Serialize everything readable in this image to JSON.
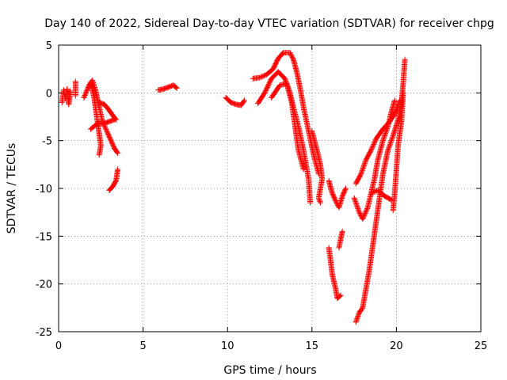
{
  "chart_data": {
    "type": "scatter",
    "title": "Day 140 of 2022, Sidereal Day-to-day VTEC variation (SDTVAR) for receiver chpg",
    "xlabel": "GPS time / hours",
    "ylabel": "SDTVAR / TECUs",
    "xlim": [
      0,
      25
    ],
    "ylim": [
      -25,
      5
    ],
    "xticks": [
      0,
      5,
      10,
      15,
      20,
      25
    ],
    "yticks": [
      -25,
      -20,
      -15,
      -10,
      -5,
      0,
      5
    ],
    "grid": true,
    "marker": "+",
    "color": "#ff0000",
    "segments": [
      {
        "name": "arc-1",
        "points": [
          [
            0.2,
            -1.0
          ],
          [
            0.3,
            0.3
          ],
          [
            0.4,
            -0.6
          ],
          [
            0.5,
            0.4
          ],
          [
            0.6,
            -1.2
          ],
          [
            0.7,
            0.2
          ]
        ]
      },
      {
        "name": "arc-2",
        "points": [
          [
            1.0,
            -0.3
          ],
          [
            1.0,
            1.2
          ]
        ]
      },
      {
        "name": "arc-3",
        "points": [
          [
            1.5,
            -0.5
          ],
          [
            1.8,
            0.8
          ],
          [
            2.0,
            1.3
          ],
          [
            2.2,
            0.2
          ],
          [
            2.4,
            -1.5
          ],
          [
            2.6,
            -3.0
          ],
          [
            2.9,
            -4.2
          ],
          [
            3.1,
            -5.0
          ],
          [
            3.3,
            -5.8
          ],
          [
            3.5,
            -6.3
          ]
        ]
      },
      {
        "name": "arc-4",
        "points": [
          [
            1.9,
            1.1
          ],
          [
            2.1,
            -0.5
          ],
          [
            2.3,
            -3.0
          ],
          [
            2.5,
            -5.5
          ],
          [
            2.4,
            -6.5
          ]
        ]
      },
      {
        "name": "arc-5",
        "points": [
          [
            2.4,
            -1.0
          ],
          [
            2.7,
            -1.2
          ],
          [
            2.9,
            -1.6
          ],
          [
            3.1,
            -2.1
          ],
          [
            3.4,
            -2.8
          ]
        ]
      },
      {
        "name": "arc-6",
        "points": [
          [
            1.9,
            -3.8
          ],
          [
            2.3,
            -3.2
          ],
          [
            2.7,
            -3.2
          ],
          [
            3.0,
            -3.0
          ],
          [
            3.3,
            -2.8
          ]
        ]
      },
      {
        "name": "arc-7",
        "points": [
          [
            3.0,
            -10.2
          ],
          [
            3.2,
            -9.8
          ],
          [
            3.4,
            -9.2
          ],
          [
            3.5,
            -8.0
          ]
        ]
      },
      {
        "name": "arc-8",
        "points": [
          [
            5.9,
            0.3
          ],
          [
            6.2,
            0.4
          ],
          [
            6.5,
            0.6
          ],
          [
            6.8,
            0.8
          ],
          [
            7.0,
            0.5
          ]
        ]
      },
      {
        "name": "arc-9",
        "points": [
          [
            9.9,
            -0.5
          ],
          [
            10.2,
            -1.0
          ],
          [
            10.5,
            -1.2
          ],
          [
            10.8,
            -1.3
          ],
          [
            11.0,
            -0.8
          ]
        ]
      },
      {
        "name": "arc-10",
        "points": [
          [
            11.5,
            1.5
          ],
          [
            11.9,
            1.6
          ],
          [
            12.3,
            1.9
          ],
          [
            12.7,
            2.5
          ],
          [
            13.0,
            3.6
          ],
          [
            13.3,
            4.2
          ],
          [
            13.7,
            4.2
          ],
          [
            13.9,
            3.5
          ],
          [
            14.1,
            2.2
          ],
          [
            14.3,
            0.5
          ],
          [
            14.5,
            -1.5
          ],
          [
            14.8,
            -4.0
          ],
          [
            15.1,
            -6.5
          ],
          [
            15.4,
            -8.5
          ]
        ]
      },
      {
        "name": "arc-11",
        "points": [
          [
            11.8,
            -1.1
          ],
          [
            12.2,
            0.0
          ],
          [
            12.6,
            1.5
          ],
          [
            13.0,
            2.2
          ],
          [
            13.4,
            1.5
          ],
          [
            13.7,
            0.0
          ],
          [
            13.9,
            -1.5
          ],
          [
            14.2,
            -3.5
          ],
          [
            14.5,
            -6.0
          ],
          [
            14.8,
            -9.0
          ],
          [
            14.9,
            -11.5
          ]
        ]
      },
      {
        "name": "arc-12",
        "points": [
          [
            12.6,
            -0.5
          ],
          [
            13.1,
            0.8
          ],
          [
            13.5,
            1.0
          ],
          [
            13.8,
            -1.0
          ],
          [
            14.0,
            -3.5
          ],
          [
            14.2,
            -6.0
          ],
          [
            14.5,
            -8.0
          ]
        ]
      },
      {
        "name": "arc-13",
        "points": [
          [
            15.0,
            -4.0
          ],
          [
            15.3,
            -6.0
          ],
          [
            15.5,
            -7.5
          ],
          [
            15.6,
            -9.0
          ],
          [
            15.4,
            -11.0
          ],
          [
            15.5,
            -11.5
          ]
        ]
      },
      {
        "name": "arc-14",
        "points": [
          [
            16.0,
            -9.2
          ],
          [
            16.2,
            -10.5
          ],
          [
            16.4,
            -11.3
          ],
          [
            16.6,
            -12.0
          ],
          [
            16.8,
            -10.8
          ],
          [
            17.0,
            -10.0
          ]
        ]
      },
      {
        "name": "arc-15",
        "points": [
          [
            16.0,
            -16.2
          ],
          [
            16.1,
            -17.5
          ],
          [
            16.2,
            -19.0
          ],
          [
            16.4,
            -20.5
          ],
          [
            16.5,
            -21.5
          ],
          [
            16.7,
            -21.2
          ]
        ]
      },
      {
        "name": "arc-16",
        "points": [
          [
            16.6,
            -16.2
          ],
          [
            16.7,
            -15.3
          ],
          [
            16.8,
            -14.5
          ]
        ]
      },
      {
        "name": "arc-17",
        "points": [
          [
            17.6,
            -24.0
          ],
          [
            17.8,
            -23.0
          ],
          [
            18.0,
            -22.5
          ],
          [
            18.2,
            -20.5
          ],
          [
            18.4,
            -18.5
          ],
          [
            18.6,
            -16.0
          ],
          [
            18.8,
            -13.5
          ],
          [
            19.0,
            -11.0
          ],
          [
            19.2,
            -8.5
          ],
          [
            19.5,
            -6.0
          ],
          [
            19.8,
            -4.5
          ],
          [
            20.1,
            -2.8
          ],
          [
            20.3,
            -1.0
          ],
          [
            20.4,
            1.0
          ],
          [
            20.5,
            3.5
          ]
        ]
      },
      {
        "name": "arc-18",
        "points": [
          [
            17.5,
            -11.0
          ],
          [
            17.8,
            -12.5
          ],
          [
            18.0,
            -13.2
          ],
          [
            18.3,
            -12.0
          ],
          [
            18.5,
            -10.5
          ],
          [
            18.7,
            -9.0
          ],
          [
            18.9,
            -7.0
          ],
          [
            19.2,
            -5.0
          ],
          [
            19.5,
            -3.5
          ],
          [
            19.7,
            -2.0
          ],
          [
            19.9,
            -0.8
          ]
        ]
      },
      {
        "name": "arc-19",
        "points": [
          [
            17.6,
            -9.5
          ],
          [
            17.9,
            -8.5
          ],
          [
            18.2,
            -7.0
          ],
          [
            18.5,
            -6.0
          ],
          [
            18.8,
            -4.8
          ],
          [
            19.2,
            -3.8
          ],
          [
            19.6,
            -3.0
          ],
          [
            19.9,
            -2.2
          ],
          [
            20.2,
            -0.8
          ]
        ]
      },
      {
        "name": "arc-20",
        "points": [
          [
            18.5,
            -10.5
          ],
          [
            18.9,
            -10.2
          ],
          [
            19.3,
            -10.8
          ],
          [
            19.7,
            -11.2
          ]
        ]
      },
      {
        "name": "arc-21",
        "points": [
          [
            19.8,
            -12.3
          ],
          [
            19.9,
            -10.5
          ],
          [
            20.0,
            -8.0
          ],
          [
            20.1,
            -5.5
          ],
          [
            20.3,
            -3.0
          ],
          [
            20.4,
            0.0
          ]
        ]
      }
    ]
  }
}
